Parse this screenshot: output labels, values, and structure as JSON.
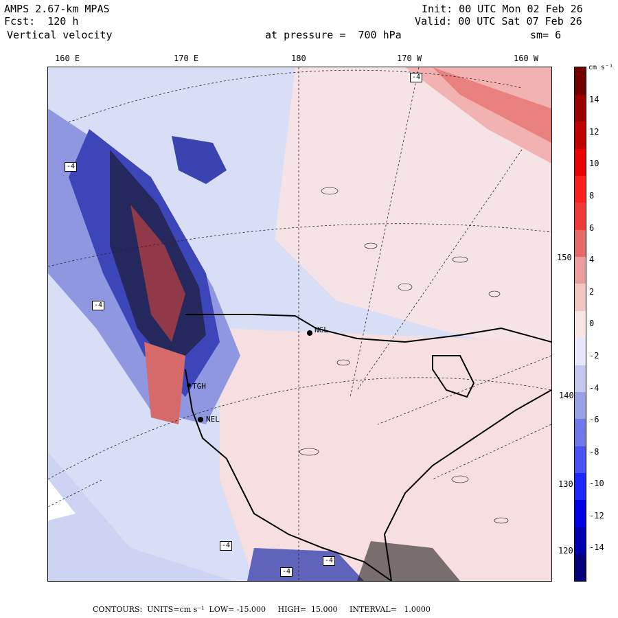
{
  "header": {
    "model": "AMPS 2.67-km MPAS",
    "forecast": "Fcst:  120 h",
    "field": "Vertical velocity",
    "level": "at pressure =  700 hPa",
    "init": "Init: 00 UTC Mon 02 Feb 26",
    "valid": "Valid: 00 UTC Sat 07 Feb 26",
    "smoothing": "sm= 6"
  },
  "map": {
    "top_longitude_labels": [
      "160 E",
      "170 E",
      "180",
      "170 W",
      "160 W"
    ],
    "right_latitude_labels": [
      "150 W",
      "140 W",
      "130 W",
      "120 W"
    ],
    "stations": [
      "NGL",
      "TGH",
      "NEL"
    ],
    "contour_tag": "-4",
    "colors": {
      "background_ocean": "#d6dcf3",
      "positive_light": "#f7d3d3",
      "negative_light": "#c8d0f2",
      "coastline": "#000000"
    }
  },
  "colorbar": {
    "unit": "cm s⁻¹",
    "labels": [
      "14",
      "12",
      "10",
      "8",
      "6",
      "4",
      "2",
      "0",
      "-2",
      "-4",
      "-6",
      "-8",
      "-10",
      "-12",
      "-14"
    ],
    "colors": [
      "#06007b",
      "#0000b0",
      "#0000e6",
      "#1a28ff",
      "#4a52f5",
      "#7078ea",
      "#9aa0e6",
      "#c4c8ef",
      "#e6e8f7",
      "#f7e6e6",
      "#f2c4c4",
      "#eb9c9c",
      "#e66a6a",
      "#f03a3a",
      "#ff1e1e",
      "#e80000",
      "#c00000",
      "#9a0000",
      "#730000"
    ]
  },
  "footer": {
    "text": "CONTOURS:  UNITS=cm s⁻¹  LOW= -15.000     HIGH=  15.000     INTERVAL=   1.0000"
  }
}
